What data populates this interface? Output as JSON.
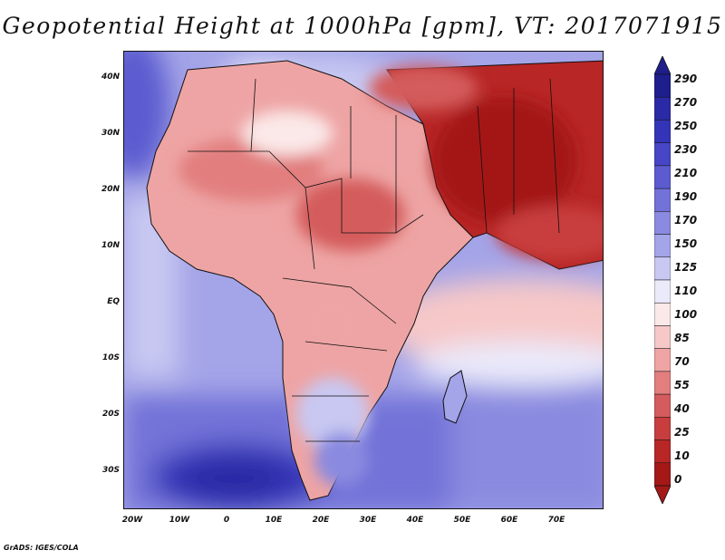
{
  "title": "Geopotential Height at 1000hPa [gpm], VT: 2017071915",
  "credit": "GrADS: IGES/COLA",
  "map": {
    "lat_labels": [
      "40N",
      "30N",
      "20N",
      "10N",
      "EQ",
      "10S",
      "20S",
      "30S"
    ],
    "lon_labels": [
      "20W",
      "10W",
      "0",
      "10E",
      "20E",
      "30E",
      "40E",
      "50E",
      "60E",
      "70E"
    ]
  },
  "colorbar": {
    "labels": [
      "290",
      "270",
      "250",
      "230",
      "210",
      "190",
      "170",
      "150",
      "125",
      "110",
      "100",
      "85",
      "70",
      "55",
      "40",
      "25",
      "10",
      "0"
    ],
    "colors": [
      "#1e1e8c",
      "#2a2aa6",
      "#3434b8",
      "#4646c6",
      "#5c5cd0",
      "#7272d8",
      "#8a8ae0",
      "#a4a4e8",
      "#c8c8f2",
      "#eaeafb",
      "#fbe8e8",
      "#f6c8c8",
      "#eea4a4",
      "#e27e7e",
      "#d45c5c",
      "#c83e3e",
      "#b82626",
      "#a41818"
    ]
  }
}
